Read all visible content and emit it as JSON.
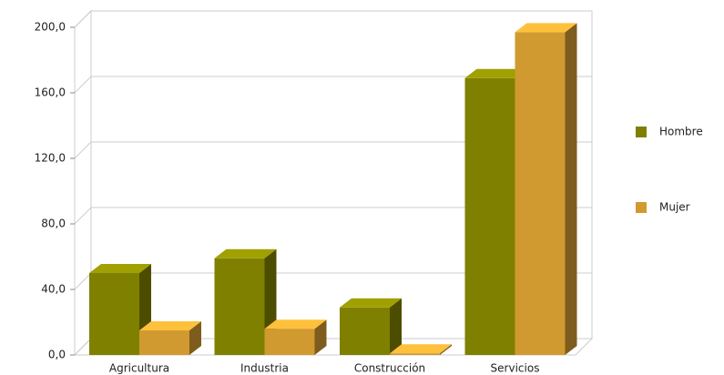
{
  "chart_data": {
    "type": "bar3d",
    "categories": [
      "Agricultura",
      "Industria",
      "Construcción",
      "Servicios"
    ],
    "series": [
      {
        "name": "Hombre",
        "color": "#808000",
        "values": [
          50,
          59,
          29,
          169
        ]
      },
      {
        "name": "Mujer",
        "color": "#d09a30",
        "values": [
          15,
          16,
          1,
          197
        ]
      }
    ],
    "ylim": [
      0,
      200
    ],
    "yticks": [
      {
        "value": 0,
        "label": "0,0"
      },
      {
        "value": 40,
        "label": "40,0"
      },
      {
        "value": 80,
        "label": "80,0"
      },
      {
        "value": 120,
        "label": "120,0"
      },
      {
        "value": 160,
        "label": "160,0"
      },
      {
        "value": 200,
        "label": "200,0"
      }
    ],
    "grid": true
  }
}
